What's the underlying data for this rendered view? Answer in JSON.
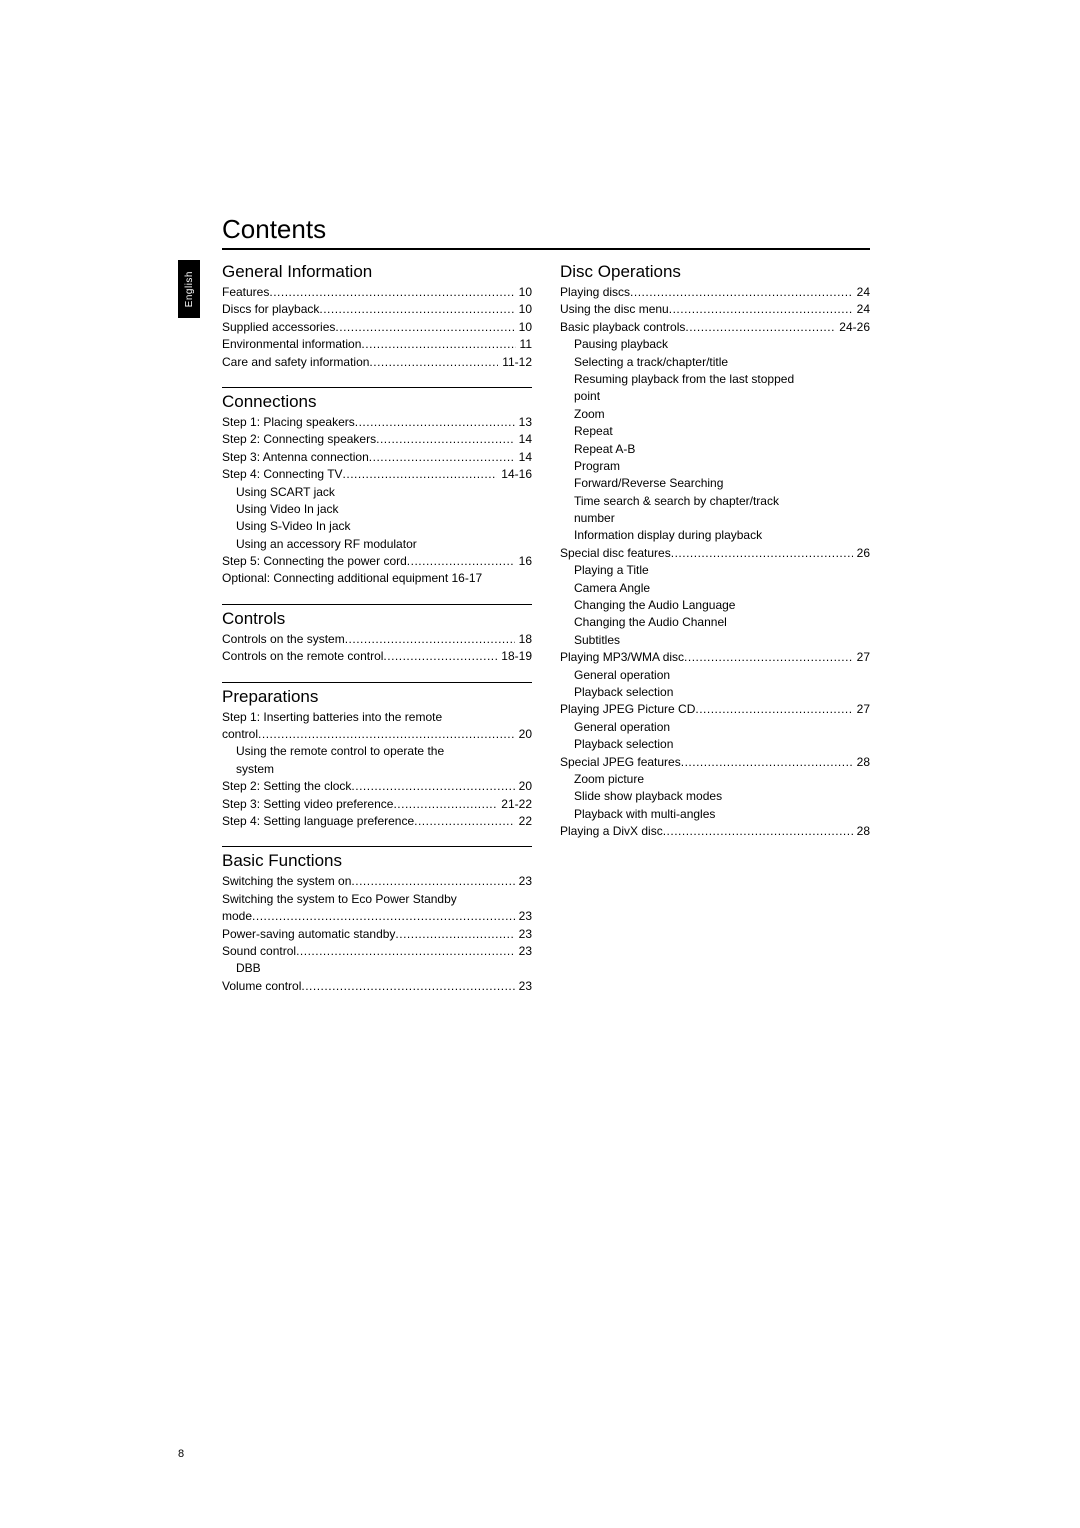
{
  "page": {
    "title": "Contents",
    "language_tab": "English",
    "page_number": "8",
    "colors": {
      "text": "#000000",
      "background": "#ffffff",
      "tab_bg": "#000000",
      "tab_text": "#ffffff"
    },
    "fonts": {
      "title_size_pt": 20,
      "heading_size_pt": 13,
      "body_size_pt": 9
    }
  },
  "left_sections": [
    {
      "heading": "General Information",
      "entries": [
        {
          "label": "Features",
          "page": "10"
        },
        {
          "label": "Discs for playback",
          "page": "10"
        },
        {
          "label": "Supplied accessories",
          "page": "10"
        },
        {
          "label": "Environmental information",
          "page": "11"
        },
        {
          "label": "Care and safety information",
          "page": "11-12"
        }
      ]
    },
    {
      "heading": "Connections",
      "entries": [
        {
          "label": "Step 1: Placing speakers",
          "page": "13"
        },
        {
          "label": "Step 2: Connecting speakers",
          "page": "14"
        },
        {
          "label": "Step 3: Antenna connection",
          "page": "14"
        },
        {
          "label": "Step 4: Connecting TV",
          "page": "14-16"
        },
        {
          "sub": "Using SCART jack"
        },
        {
          "sub": "Using Video In jack"
        },
        {
          "sub": "Using S-Video In jack"
        },
        {
          "sub": "Using an accessory RF modulator"
        },
        {
          "label": "Step 5: Connecting the power cord",
          "page": "16"
        },
        {
          "label_full": "Optional: Connecting additional equipment 16-17"
        }
      ]
    },
    {
      "heading": "Controls",
      "entries": [
        {
          "label": "Controls on the system",
          "page": "18"
        },
        {
          "label": "Controls on the remote control",
          "page": "18-19"
        }
      ]
    },
    {
      "heading": "Preparations",
      "entries": [
        {
          "label_wrap1": "Step 1: Inserting batteries into the remote",
          "label_wrap2": "control",
          "page": "20"
        },
        {
          "sub_wrap1": "Using the remote control to operate the",
          "sub_wrap2": "system"
        },
        {
          "label": "Step 2: Setting the clock",
          "page": "20"
        },
        {
          "label": "Step 3: Setting video preference",
          "page": "21-22"
        },
        {
          "label": "Step 4: Setting language preference",
          "page": "22"
        }
      ]
    },
    {
      "heading": "Basic Functions",
      "entries": [
        {
          "label": "Switching the system on",
          "page": "23"
        },
        {
          "label_wrap1": "Switching the system to Eco Power Standby",
          "label_wrap2": "mode",
          "page": "23"
        },
        {
          "label": "Power-saving automatic standby",
          "page": "23"
        },
        {
          "label": "Sound control",
          "page": "23"
        },
        {
          "sub": "DBB"
        },
        {
          "label": "Volume control",
          "page": "23"
        }
      ]
    }
  ],
  "right_sections": [
    {
      "heading": "Disc Operations",
      "entries": [
        {
          "label": "Playing discs",
          "page": "24"
        },
        {
          "label": "Using the disc menu",
          "page": "24"
        },
        {
          "label": "Basic playback controls",
          "page": "24-26"
        },
        {
          "sub": "Pausing playback"
        },
        {
          "sub": "Selecting a track/chapter/title"
        },
        {
          "sub_wrap1": "Resuming playback from the last stopped",
          "sub_wrap2": "point"
        },
        {
          "sub": "Zoom"
        },
        {
          "sub": "Repeat"
        },
        {
          "sub": "Repeat A-B"
        },
        {
          "sub": "Program"
        },
        {
          "sub": "Forward/Reverse Searching"
        },
        {
          "sub_wrap1": "Time search & search by chapter/track",
          "sub_wrap2": "number"
        },
        {
          "sub": "Information display during playback"
        },
        {
          "label": "Special disc features",
          "page": "26"
        },
        {
          "sub": "Playing a Title"
        },
        {
          "sub": "Camera Angle"
        },
        {
          "sub": "Changing the Audio Language"
        },
        {
          "sub": "Changing the Audio Channel"
        },
        {
          "sub": "Subtitles"
        },
        {
          "label": "Playing MP3/WMA disc",
          "page": "27"
        },
        {
          "sub": "General operation"
        },
        {
          "sub": "Playback selection"
        },
        {
          "label": "Playing JPEG Picture CD",
          "page": "27"
        },
        {
          "sub": "General operation"
        },
        {
          "sub": "Playback selection"
        },
        {
          "label": "Special JPEG features",
          "page": "28"
        },
        {
          "sub": "Zoom picture"
        },
        {
          "sub": "Slide show playback modes"
        },
        {
          "sub": "Playback with multi-angles"
        },
        {
          "label": "Playing a DivX disc",
          "page": "28"
        }
      ]
    }
  ]
}
